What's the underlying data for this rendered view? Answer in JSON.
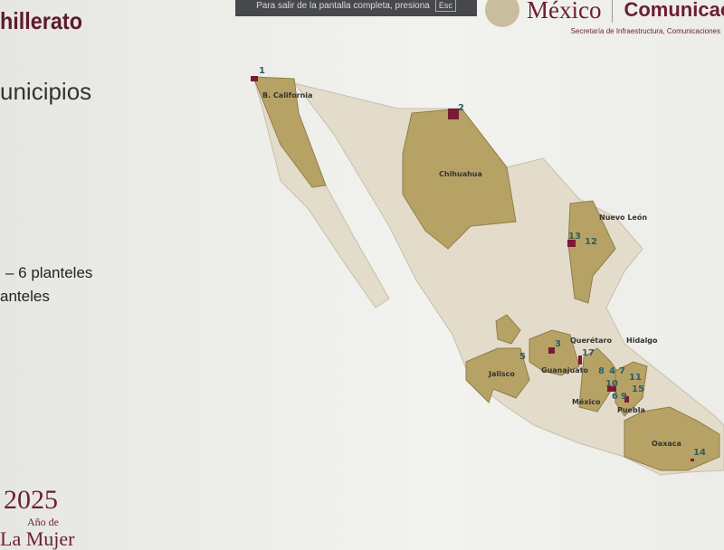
{
  "slide": {
    "title": "hillerato",
    "subtitle": "unicipios",
    "legend": [
      "– 6 planteles",
      "anteles"
    ],
    "year": "2025",
    "year_line2": "Año de",
    "year_line3": "La Mujer"
  },
  "fullscreen_toast": {
    "text": "Para salir de la pantalla completa, presiona",
    "key": "Esc"
  },
  "header": {
    "gov": "México",
    "comm": "Comunicac",
    "comm_sub": "Secretaría de Infraestructura, Comunicaciones"
  },
  "colors": {
    "state_fill": "#b7a266",
    "country_fill": "#e3dccb",
    "marker": "#7a1a35",
    "label": "#2e5f63"
  },
  "map": {
    "states": [
      {
        "name": "B. California"
      },
      {
        "name": "Chihuahua"
      },
      {
        "name": "Nuevo León"
      },
      {
        "name": "Jalisco"
      },
      {
        "name": "Guanajuato"
      },
      {
        "name": "Querétaro"
      },
      {
        "name": "Hidalgo"
      },
      {
        "name": "México"
      },
      {
        "name": "Puebla"
      },
      {
        "name": "Oaxaca"
      }
    ],
    "markers": [
      "1",
      "2",
      "3",
      "4",
      "5",
      "6",
      "7",
      "8",
      "9",
      "10",
      "11",
      "12",
      "13",
      "14",
      "15",
      "17"
    ]
  }
}
